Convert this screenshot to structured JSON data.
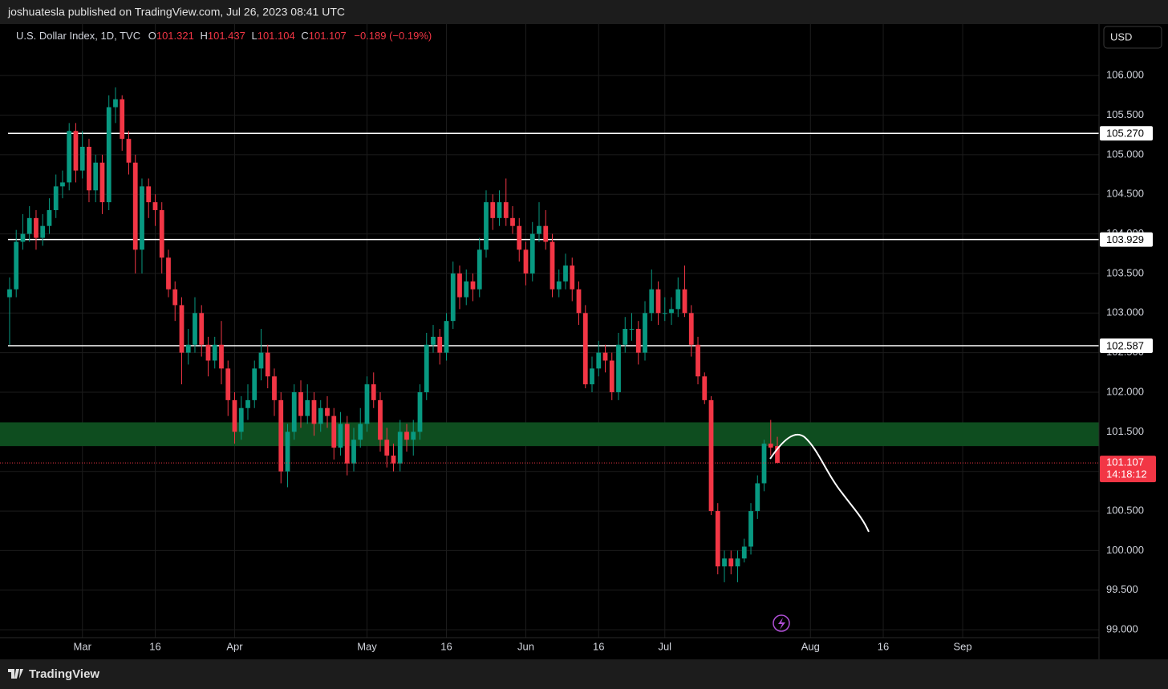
{
  "header_bar": {
    "published": "joshuatesla published on TradingView.com, Jul 26, 2023 08:41 UTC"
  },
  "footer": {
    "brand": "TradingView"
  },
  "chart_data": {
    "type": "candlestick",
    "title": "U.S. Dollar Index, 1D, TVC",
    "ohlc_labels": [
      "O",
      "H",
      "L",
      "C"
    ],
    "change": "−0.189 (−0.19%)",
    "currency": "USD",
    "countdown": "14:18:12",
    "up_color": "#089981",
    "down_color": "#f23645",
    "grid": true,
    "open": [
      103.2,
      103.3,
      103.9,
      104.0,
      104.2,
      103.95,
      104.1,
      104.3,
      104.6,
      104.65,
      105.3,
      104.8,
      105.1,
      104.55,
      104.9,
      104.4,
      105.6,
      105.7,
      105.2,
      104.9,
      103.8,
      104.6,
      104.4,
      104.3,
      103.7,
      103.3,
      103.1,
      102.5,
      102.6,
      103.0,
      102.6,
      102.4,
      102.6,
      102.3,
      101.9,
      101.5,
      101.8,
      101.9,
      102.3,
      102.5,
      102.2,
      101.9,
      101.0,
      101.5,
      102.0,
      101.7,
      101.9,
      101.6,
      101.8,
      101.7,
      101.3,
      101.6,
      101.1,
      101.4,
      101.6,
      102.1,
      101.9,
      101.4,
      101.2,
      101.1,
      101.5,
      101.4,
      101.5,
      102.0,
      102.6,
      102.7,
      102.5,
      102.9,
      103.5,
      103.2,
      103.4,
      103.3,
      103.8,
      104.4,
      104.2,
      104.4,
      104.2,
      104.1,
      103.8,
      103.5,
      104.0,
      104.1,
      103.9,
      103.3,
      103.4,
      103.6,
      103.3,
      103.0,
      102.1,
      102.3,
      102.5,
      102.4,
      102.0,
      102.6,
      102.8,
      102.8,
      102.5,
      103.0,
      103.3,
      103.0,
      103.0,
      103.05,
      103.3,
      103.0,
      102.6,
      102.2,
      101.9,
      100.5,
      99.8,
      99.9,
      99.8,
      99.9,
      100.05,
      100.5,
      100.85,
      101.35,
      101.321
    ],
    "high": [
      103.45,
      104.05,
      104.25,
      104.35,
      104.3,
      104.25,
      104.45,
      104.75,
      104.8,
      105.4,
      105.4,
      105.3,
      105.2,
      105.0,
      105.0,
      105.75,
      105.85,
      105.75,
      105.3,
      105.0,
      104.7,
      104.7,
      104.5,
      104.4,
      103.8,
      103.4,
      103.2,
      102.8,
      103.2,
      103.1,
      102.7,
      102.7,
      102.9,
      102.4,
      102.0,
      101.95,
      102.1,
      102.4,
      102.8,
      102.6,
      102.3,
      102.0,
      101.6,
      102.1,
      102.15,
      102.1,
      102.0,
      101.9,
      101.95,
      101.8,
      101.75,
      101.7,
      101.55,
      101.8,
      102.2,
      102.25,
      102.0,
      101.55,
      101.35,
      101.65,
      101.6,
      101.65,
      102.1,
      102.75,
      102.85,
      102.8,
      103.0,
      103.65,
      103.6,
      103.55,
      103.5,
      103.95,
      104.55,
      104.5,
      104.55,
      104.7,
      104.35,
      104.2,
      103.9,
      104.15,
      104.4,
      104.3,
      104.0,
      103.55,
      103.75,
      103.7,
      103.4,
      103.1,
      102.45,
      102.65,
      102.6,
      102.5,
      102.75,
      102.95,
      103.0,
      102.9,
      103.15,
      103.55,
      103.4,
      103.2,
      103.2,
      103.45,
      103.6,
      103.1,
      102.7,
      102.25,
      101.95,
      100.6,
      100.0,
      100.0,
      100.0,
      100.15,
      100.6,
      100.95,
      101.4,
      101.65,
      101.437
    ],
    "low": [
      102.6,
      103.2,
      103.8,
      103.9,
      103.8,
      103.85,
      104.0,
      104.2,
      104.45,
      104.55,
      104.65,
      104.7,
      104.4,
      104.4,
      104.25,
      104.3,
      105.4,
      105.05,
      104.75,
      103.5,
      103.5,
      104.2,
      104.1,
      103.5,
      103.2,
      102.9,
      102.1,
      102.35,
      102.5,
      102.45,
      102.2,
      102.3,
      102.1,
      101.7,
      101.35,
      101.4,
      101.65,
      101.8,
      102.15,
      102.05,
      101.7,
      100.85,
      100.8,
      101.4,
      101.55,
      101.6,
      101.45,
      101.5,
      101.55,
      101.15,
      101.2,
      100.95,
      101.0,
      101.3,
      101.5,
      101.8,
      101.25,
      101.05,
      101.0,
      101.0,
      101.25,
      101.2,
      101.4,
      101.9,
      102.5,
      102.35,
      102.4,
      102.8,
      103.05,
      103.1,
      103.15,
      103.2,
      103.7,
      104.05,
      104.1,
      104.1,
      104.0,
      103.65,
      103.35,
      103.4,
      103.9,
      103.8,
      103.2,
      103.2,
      103.3,
      103.15,
      102.85,
      102.05,
      102.0,
      102.2,
      102.25,
      101.9,
      101.9,
      102.5,
      102.65,
      102.35,
      102.4,
      102.9,
      102.85,
      102.9,
      102.85,
      102.95,
      102.95,
      102.45,
      102.1,
      101.85,
      100.45,
      99.7,
      99.6,
      99.7,
      99.6,
      99.85,
      99.95,
      100.4,
      100.75,
      101.2,
      101.104
    ],
    "close": [
      103.3,
      103.9,
      104.0,
      104.2,
      103.95,
      104.1,
      104.3,
      104.6,
      104.65,
      105.3,
      104.8,
      105.1,
      104.55,
      104.9,
      104.4,
      105.6,
      105.7,
      105.2,
      104.9,
      103.8,
      104.6,
      104.4,
      104.3,
      103.7,
      103.3,
      103.1,
      102.5,
      102.6,
      103.0,
      102.6,
      102.4,
      102.6,
      102.3,
      101.9,
      101.5,
      101.8,
      101.9,
      102.3,
      102.5,
      102.2,
      101.9,
      101.0,
      101.5,
      102.0,
      101.7,
      101.9,
      101.6,
      101.8,
      101.7,
      101.3,
      101.6,
      101.1,
      101.4,
      101.6,
      102.1,
      101.9,
      101.4,
      101.2,
      101.1,
      101.5,
      101.4,
      101.5,
      102.0,
      102.6,
      102.7,
      102.5,
      102.9,
      103.5,
      103.2,
      103.4,
      103.3,
      103.8,
      104.4,
      104.2,
      104.4,
      104.2,
      104.1,
      103.8,
      103.5,
      104.0,
      104.1,
      103.9,
      103.3,
      103.4,
      103.6,
      103.3,
      103.0,
      102.1,
      102.3,
      102.5,
      102.4,
      102.0,
      102.6,
      102.8,
      102.8,
      102.5,
      103.0,
      103.3,
      103.0,
      103.0,
      103.05,
      103.3,
      103.0,
      102.6,
      102.2,
      101.9,
      100.5,
      99.8,
      99.9,
      99.8,
      99.9,
      100.05,
      100.5,
      100.85,
      101.35,
      101.3,
      101.107
    ],
    "xlim": [
      -1.45,
      164.6
    ],
    "xticks": [
      {
        "value": 11,
        "label": "Mar"
      },
      {
        "value": 22,
        "label": "16"
      },
      {
        "value": 34,
        "label": "Apr"
      },
      {
        "value": 54,
        "label": "May"
      },
      {
        "value": 66,
        "label": "16"
      },
      {
        "value": 78,
        "label": "Jun"
      },
      {
        "value": 89,
        "label": "16"
      },
      {
        "value": 99,
        "label": "Jul"
      },
      {
        "value": 121,
        "label": "Aug"
      },
      {
        "value": 132,
        "label": "16"
      },
      {
        "value": 144,
        "label": "Sep"
      }
    ],
    "ylim": [
      98.9,
      106.65
    ],
    "yticks": [
      {
        "value": 99,
        "label": "99.000"
      },
      {
        "value": 99.5,
        "label": "99.500"
      },
      {
        "value": 100,
        "label": "100.000"
      },
      {
        "value": 100.5,
        "label": "100.500"
      },
      {
        "value": 101,
        "label": "101.000"
      },
      {
        "value": 101.5,
        "label": "101.500"
      },
      {
        "value": 102,
        "label": "102.000"
      },
      {
        "value": 102.5,
        "label": "102.500"
      },
      {
        "value": 103,
        "label": "103.000"
      },
      {
        "value": 103.5,
        "label": "103.500"
      },
      {
        "value": 104,
        "label": "104.000"
      },
      {
        "value": 104.5,
        "label": "104.500"
      },
      {
        "value": 105,
        "label": "105.000"
      },
      {
        "value": 105.5,
        "label": "105.500"
      },
      {
        "value": 106,
        "label": "106.000"
      }
    ],
    "levels": [
      {
        "value": 105.27,
        "label": "105.270"
      },
      {
        "value": 103.929,
        "label": "103.929"
      },
      {
        "value": 102.587,
        "label": "102.587"
      }
    ],
    "level_color": "#ffffff",
    "zone": [
      101.32,
      101.62
    ],
    "zone_color": "#0e4d1f"
  }
}
